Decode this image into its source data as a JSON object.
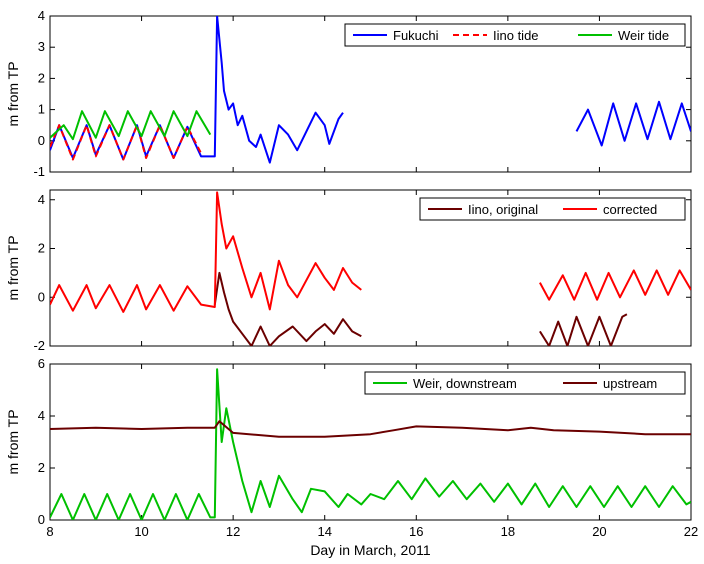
{
  "chart_data": [
    {
      "type": "line",
      "ylabel": "m from TP",
      "xlim": [
        8,
        22
      ],
      "ylim": [
        -1,
        4
      ],
      "yticks": [
        -1,
        0,
        1,
        2,
        3,
        4
      ],
      "xticks": [
        8,
        10,
        12,
        14,
        16,
        18,
        20,
        22
      ],
      "grid": false,
      "legend_position": "top-right",
      "series": [
        {
          "name": "Fukuchi",
          "color": "#0000ff",
          "style": "solid",
          "points": [
            [
              8.0,
              -0.3
            ],
            [
              8.2,
              0.5
            ],
            [
              8.5,
              -0.55
            ],
            [
              8.8,
              0.5
            ],
            [
              9.0,
              -0.45
            ],
            [
              9.3,
              0.5
            ],
            [
              9.6,
              -0.6
            ],
            [
              9.9,
              0.5
            ],
            [
              10.1,
              -0.5
            ],
            [
              10.4,
              0.5
            ],
            [
              10.7,
              -0.55
            ],
            [
              11.0,
              0.45
            ],
            [
              11.3,
              -0.5
            ],
            [
              11.6,
              -0.5
            ],
            [
              11.65,
              4.0
            ],
            [
              11.75,
              2.5
            ],
            [
              11.8,
              1.6
            ],
            [
              11.9,
              1.0
            ],
            [
              12.0,
              1.2
            ],
            [
              12.1,
              0.5
            ],
            [
              12.2,
              0.8
            ],
            [
              12.35,
              0.0
            ],
            [
              12.5,
              -0.2
            ],
            [
              12.6,
              0.2
            ],
            [
              12.8,
              -0.7
            ],
            [
              13.0,
              0.5
            ],
            [
              13.2,
              0.2
            ],
            [
              13.4,
              -0.3
            ],
            [
              13.6,
              0.3
            ],
            [
              13.8,
              0.9
            ],
            [
              14.0,
              0.5
            ],
            [
              14.1,
              -0.1
            ],
            [
              14.3,
              0.7
            ],
            [
              14.4,
              0.9
            ]
          ]
        },
        {
          "name": "Iino tide",
          "color": "#ff0000",
          "style": "dashed",
          "points": [
            [
              8.0,
              -0.2
            ],
            [
              8.2,
              0.5
            ],
            [
              8.5,
              -0.6
            ],
            [
              8.8,
              0.5
            ],
            [
              9.0,
              -0.5
            ],
            [
              9.3,
              0.5
            ],
            [
              9.6,
              -0.6
            ],
            [
              9.9,
              0.5
            ],
            [
              10.1,
              -0.55
            ],
            [
              10.4,
              0.5
            ],
            [
              10.7,
              -0.55
            ],
            [
              11.0,
              0.45
            ],
            [
              11.3,
              -0.4
            ]
          ]
        },
        {
          "name": "Weir tide",
          "color": "#00c000",
          "style": "solid",
          "points": [
            [
              8.0,
              0.1
            ],
            [
              8.3,
              0.5
            ],
            [
              8.5,
              0.05
            ],
            [
              8.7,
              0.95
            ],
            [
              9.0,
              0.1
            ],
            [
              9.2,
              0.95
            ],
            [
              9.5,
              0.15
            ],
            [
              9.7,
              0.95
            ],
            [
              10.0,
              0.15
            ],
            [
              10.2,
              0.95
            ],
            [
              10.5,
              0.15
            ],
            [
              10.7,
              0.95
            ],
            [
              11.0,
              0.15
            ],
            [
              11.2,
              0.95
            ],
            [
              11.5,
              0.2
            ]
          ]
        }
      ],
      "series_gap": [
        {
          "name": "Fukuchi",
          "points": [
            [
              19.5,
              0.3
            ],
            [
              19.75,
              1.0
            ],
            [
              20.05,
              -0.15
            ],
            [
              20.3,
              1.2
            ],
            [
              20.55,
              0.0
            ],
            [
              20.8,
              1.2
            ],
            [
              21.05,
              0.05
            ],
            [
              21.3,
              1.25
            ],
            [
              21.55,
              0.05
            ],
            [
              21.8,
              1.2
            ],
            [
              22.0,
              0.3
            ]
          ]
        }
      ]
    },
    {
      "type": "line",
      "ylabel": "m from TP",
      "xlim": [
        8,
        22
      ],
      "ylim": [
        -2,
        4.4
      ],
      "yticks": [
        -2,
        0,
        2,
        4
      ],
      "xticks": [
        8,
        10,
        12,
        14,
        16,
        18,
        20,
        22
      ],
      "grid": false,
      "legend_position": "top-right",
      "series": [
        {
          "name": "Iino, original",
          "color": "#6b0000",
          "style": "solid",
          "points": [
            [
              11.6,
              -0.3
            ],
            [
              11.7,
              1.0
            ],
            [
              11.8,
              0.2
            ],
            [
              11.9,
              -0.5
            ],
            [
              12.0,
              -1.0
            ],
            [
              12.2,
              -1.5
            ],
            [
              12.4,
              -2.0
            ],
            [
              12.6,
              -1.2
            ],
            [
              12.8,
              -2.0
            ],
            [
              13.0,
              -1.6
            ],
            [
              13.3,
              -1.2
            ],
            [
              13.6,
              -1.8
            ],
            [
              13.8,
              -1.4
            ],
            [
              14.0,
              -1.1
            ],
            [
              14.2,
              -1.5
            ],
            [
              14.4,
              -0.9
            ],
            [
              14.6,
              -1.4
            ],
            [
              14.8,
              -1.6
            ]
          ],
          "points2": [
            [
              18.7,
              -1.4
            ],
            [
              18.9,
              -2.0
            ],
            [
              19.1,
              -1.0
            ],
            [
              19.3,
              -2.0
            ],
            [
              19.5,
              -0.8
            ],
            [
              19.75,
              -2.0
            ],
            [
              20.0,
              -0.8
            ],
            [
              20.25,
              -2.0
            ],
            [
              20.5,
              -0.8
            ],
            [
              20.6,
              -0.7
            ]
          ]
        },
        {
          "name": "corrected",
          "color": "#ff0000",
          "style": "solid",
          "points": [
            [
              8.0,
              -0.3
            ],
            [
              8.2,
              0.5
            ],
            [
              8.5,
              -0.55
            ],
            [
              8.8,
              0.5
            ],
            [
              9.0,
              -0.45
            ],
            [
              9.3,
              0.5
            ],
            [
              9.6,
              -0.6
            ],
            [
              9.9,
              0.5
            ],
            [
              10.1,
              -0.5
            ],
            [
              10.4,
              0.5
            ],
            [
              10.7,
              -0.55
            ],
            [
              11.0,
              0.45
            ],
            [
              11.3,
              -0.3
            ],
            [
              11.6,
              -0.4
            ],
            [
              11.65,
              4.3
            ],
            [
              11.75,
              3.0
            ],
            [
              11.85,
              2.0
            ],
            [
              12.0,
              2.5
            ],
            [
              12.2,
              1.2
            ],
            [
              12.4,
              0.0
            ],
            [
              12.6,
              1.0
            ],
            [
              12.8,
              -0.5
            ],
            [
              13.0,
              1.5
            ],
            [
              13.2,
              0.5
            ],
            [
              13.4,
              0.0
            ],
            [
              13.6,
              0.7
            ],
            [
              13.8,
              1.4
            ],
            [
              14.0,
              0.8
            ],
            [
              14.2,
              0.3
            ],
            [
              14.4,
              1.2
            ],
            [
              14.6,
              0.6
            ],
            [
              14.8,
              0.3
            ]
          ],
          "points2": [
            [
              18.7,
              0.6
            ],
            [
              18.9,
              -0.1
            ],
            [
              19.2,
              0.9
            ],
            [
              19.45,
              -0.1
            ],
            [
              19.7,
              1.0
            ],
            [
              19.95,
              -0.1
            ],
            [
              20.2,
              1.0
            ],
            [
              20.45,
              0.0
            ],
            [
              20.75,
              1.1
            ],
            [
              21.0,
              0.1
            ],
            [
              21.25,
              1.1
            ],
            [
              21.5,
              0.1
            ],
            [
              21.75,
              1.1
            ],
            [
              22.0,
              0.3
            ]
          ]
        }
      ]
    },
    {
      "type": "line",
      "ylabel": "m from TP",
      "xlabel": "Day in March, 2011",
      "xlim": [
        8,
        22
      ],
      "ylim": [
        0,
        6
      ],
      "yticks": [
        0,
        2,
        4,
        6
      ],
      "xticks": [
        8,
        10,
        12,
        14,
        16,
        18,
        20,
        22
      ],
      "grid": false,
      "legend_position": "top-right",
      "series": [
        {
          "name": "Weir, downstream",
          "color": "#00c000",
          "style": "solid",
          "points": [
            [
              8.0,
              0.1
            ],
            [
              8.25,
              1.0
            ],
            [
              8.5,
              0.0
            ],
            [
              8.75,
              1.0
            ],
            [
              9.0,
              0.0
            ],
            [
              9.25,
              1.0
            ],
            [
              9.5,
              0.0
            ],
            [
              9.75,
              1.0
            ],
            [
              10.0,
              0.0
            ],
            [
              10.25,
              1.0
            ],
            [
              10.5,
              0.0
            ],
            [
              10.75,
              1.0
            ],
            [
              11.0,
              0.0
            ],
            [
              11.25,
              1.0
            ],
            [
              11.5,
              0.1
            ],
            [
              11.6,
              0.1
            ],
            [
              11.65,
              5.8
            ],
            [
              11.75,
              3.0
            ],
            [
              11.85,
              4.3
            ],
            [
              12.0,
              3.0
            ],
            [
              12.2,
              1.5
            ],
            [
              12.4,
              0.3
            ],
            [
              12.6,
              1.5
            ],
            [
              12.8,
              0.5
            ],
            [
              13.0,
              1.7
            ],
            [
              13.3,
              0.8
            ],
            [
              13.5,
              0.3
            ],
            [
              13.7,
              1.2
            ],
            [
              14.0,
              1.1
            ],
            [
              14.3,
              0.5
            ],
            [
              14.5,
              1.0
            ],
            [
              14.8,
              0.6
            ],
            [
              15.0,
              1.0
            ],
            [
              15.3,
              0.8
            ],
            [
              15.6,
              1.5
            ],
            [
              15.9,
              0.8
            ],
            [
              16.2,
              1.6
            ],
            [
              16.5,
              0.9
            ],
            [
              16.8,
              1.5
            ],
            [
              17.1,
              0.8
            ],
            [
              17.4,
              1.4
            ],
            [
              17.7,
              0.7
            ],
            [
              18.0,
              1.4
            ],
            [
              18.3,
              0.6
            ],
            [
              18.6,
              1.4
            ],
            [
              18.9,
              0.5
            ],
            [
              19.2,
              1.3
            ],
            [
              19.5,
              0.5
            ],
            [
              19.8,
              1.3
            ],
            [
              20.1,
              0.5
            ],
            [
              20.4,
              1.3
            ],
            [
              20.7,
              0.5
            ],
            [
              21.0,
              1.3
            ],
            [
              21.3,
              0.5
            ],
            [
              21.6,
              1.3
            ],
            [
              21.9,
              0.6
            ],
            [
              22.0,
              0.7
            ]
          ]
        },
        {
          "name": "upstream",
          "color": "#6b0000",
          "style": "solid",
          "points": [
            [
              8.0,
              3.5
            ],
            [
              9.0,
              3.55
            ],
            [
              10.0,
              3.5
            ],
            [
              11.0,
              3.55
            ],
            [
              11.6,
              3.55
            ],
            [
              11.7,
              3.8
            ],
            [
              12.0,
              3.35
            ],
            [
              13.0,
              3.2
            ],
            [
              14.0,
              3.2
            ],
            [
              15.0,
              3.3
            ],
            [
              15.5,
              3.45
            ],
            [
              16.0,
              3.6
            ],
            [
              17.0,
              3.55
            ],
            [
              18.0,
              3.45
            ],
            [
              18.5,
              3.55
            ],
            [
              19.0,
              3.45
            ],
            [
              20.0,
              3.4
            ],
            [
              21.0,
              3.3
            ],
            [
              22.0,
              3.3
            ]
          ]
        }
      ]
    }
  ]
}
